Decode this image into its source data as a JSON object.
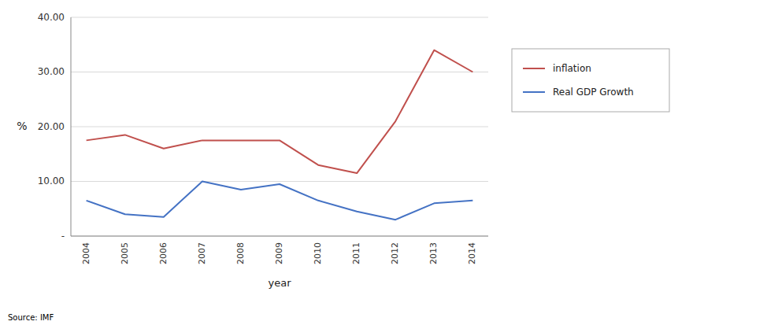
{
  "chart_data": {
    "type": "line",
    "xlabel": "year",
    "ylabel": "%",
    "x": [
      2004,
      2005,
      2006,
      2007,
      2008,
      2009,
      2010,
      2011,
      2012,
      2013,
      2014
    ],
    "series": [
      {
        "name": "inflation",
        "color": "#C0504D",
        "values": [
          17.5,
          18.5,
          16.0,
          17.5,
          17.5,
          17.5,
          13.0,
          11.5,
          21.0,
          34.0,
          30.0
        ]
      },
      {
        "name": "Real GDP Growth",
        "color": "#4472C4",
        "values": [
          6.5,
          4.0,
          3.5,
          10.0,
          8.5,
          9.5,
          6.5,
          4.5,
          3.0,
          6.0,
          6.5
        ]
      }
    ],
    "xlim": [
      2003.6,
      2014.4
    ],
    "xticks": [
      2004,
      2005,
      2006,
      2007,
      2008,
      2009,
      2010,
      2011,
      2012,
      2013,
      2014
    ],
    "ylim": [
      0,
      40
    ],
    "yticks": [
      {
        "value": 0,
        "label": "-"
      },
      {
        "value": 10,
        "label": "10.00"
      },
      {
        "value": 20,
        "label": "20.00"
      },
      {
        "value": 30,
        "label": "30.00"
      },
      {
        "value": 40,
        "label": "40.00"
      }
    ],
    "grid": true,
    "legend": "right",
    "annotations": [
      "Source: IMF"
    ]
  }
}
